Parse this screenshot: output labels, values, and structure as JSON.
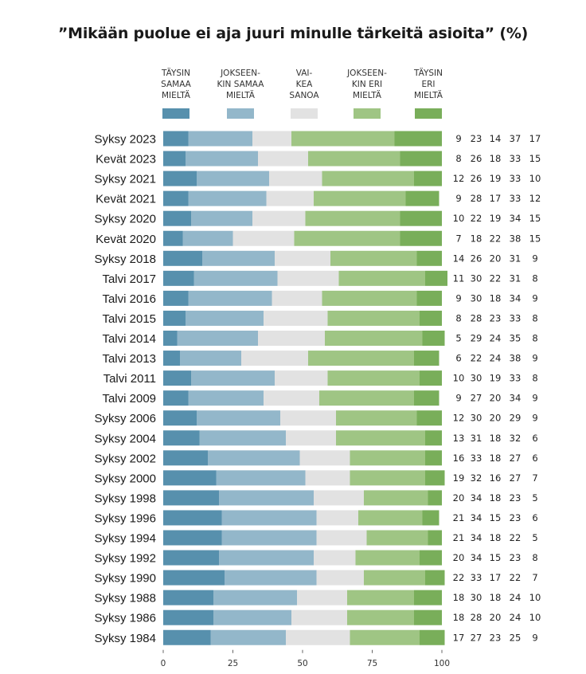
{
  "chart_data": {
    "type": "bar",
    "orientation": "horizontal",
    "stacked": true,
    "title": "”Mikään puolue ei aja juuri minulle tärkeitä asioita” (%)",
    "categories": [
      "Syksy 2023",
      "Kevät 2023",
      "Syksy 2021",
      "Kevät 2021",
      "Syksy 2020",
      "Kevät 2020",
      "Syksy 2018",
      "Talvi 2017",
      "Talvi 2016",
      "Talvi 2015",
      "Talvi 2014",
      "Talvi 2013",
      "Talvi 2011",
      "Talvi 2009",
      "Syksy 2006",
      "Syksy 2004",
      "Syksy 2002",
      "Syksy 2000",
      "Syksy 1998",
      "Syksy 1996",
      "Syksy 1994",
      "Syksy 1992",
      "Syksy 1990",
      "Syksy 1988",
      "Syksy 1986",
      "Syksy 1984"
    ],
    "series": [
      {
        "name": "TÄYSIN SAMAA MIELTÄ",
        "name_lines": [
          "TÄYSIN",
          "SAMAA",
          "MIELTÄ"
        ],
        "color": "#5790ad",
        "values": [
          9,
          8,
          12,
          9,
          10,
          7,
          14,
          11,
          9,
          8,
          5,
          6,
          10,
          9,
          12,
          13,
          16,
          19,
          20,
          21,
          21,
          20,
          22,
          18,
          18,
          17
        ]
      },
      {
        "name": "JOKSEEN-KIN SAMAA MIELTÄ",
        "name_lines": [
          "JOKSEEN-",
          "KIN SAMAA",
          "MIELTÄ"
        ],
        "color": "#93b7ca",
        "values": [
          23,
          26,
          26,
          28,
          22,
          18,
          26,
          30,
          30,
          28,
          29,
          22,
          30,
          27,
          30,
          31,
          33,
          32,
          34,
          34,
          34,
          34,
          33,
          30,
          28,
          27
        ]
      },
      {
        "name": "VAI-KEA SANOA",
        "name_lines": [
          "VAI-",
          "KEA",
          "SANOA"
        ],
        "color": "#e2e2e2",
        "values": [
          14,
          18,
          19,
          17,
          19,
          22,
          20,
          22,
          18,
          23,
          24,
          24,
          19,
          20,
          20,
          18,
          18,
          16,
          18,
          15,
          18,
          15,
          17,
          18,
          20,
          23
        ]
      },
      {
        "name": "JOKSEEN-KIN ERI MIELTÄ",
        "name_lines": [
          "JOKSEEN-",
          "KIN ERI",
          "MIELTÄ"
        ],
        "color": "#9fc584",
        "values": [
          37,
          33,
          33,
          33,
          34,
          38,
          31,
          31,
          34,
          33,
          35,
          38,
          33,
          34,
          29,
          32,
          27,
          27,
          23,
          23,
          22,
          23,
          22,
          24,
          24,
          25
        ]
      },
      {
        "name": "TÄYSIN ERI MIELTÄ",
        "name_lines": [
          "TÄYSIN",
          "ERI",
          "MIELTÄ"
        ],
        "color": "#79ae5a",
        "values": [
          17,
          15,
          10,
          12,
          15,
          15,
          9,
          8,
          9,
          8,
          8,
          9,
          8,
          9,
          9,
          6,
          6,
          7,
          5,
          6,
          5,
          8,
          7,
          10,
          10,
          9
        ]
      }
    ],
    "x_ticks": [
      0,
      25,
      50,
      75,
      100
    ],
    "xlim": [
      0,
      100
    ],
    "xlabel": "",
    "ylabel": "",
    "grid": false,
    "legend_position": "top"
  }
}
